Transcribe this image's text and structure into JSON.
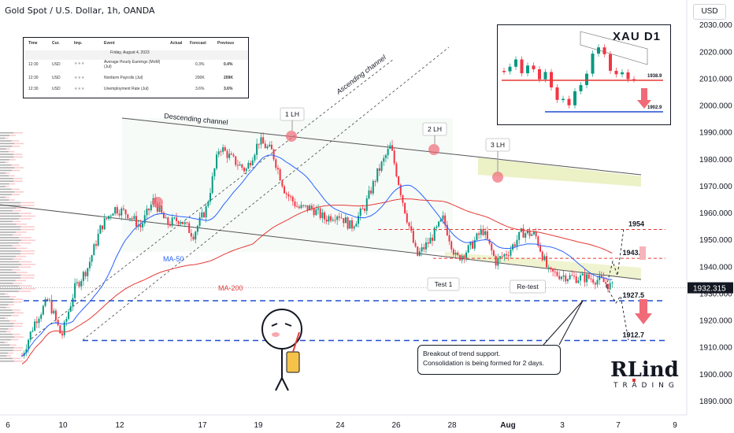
{
  "header": {
    "title": "Gold Spot / U.S. Dollar, 1h, OANDA",
    "currency_button": "USD"
  },
  "calendar": {
    "headers": [
      "Time",
      "Cur.",
      "Imp.",
      "Event",
      "Actual",
      "Forecast",
      "Previous"
    ],
    "date_row": "Friday, August 4, 2023",
    "rows": [
      {
        "time": "12:30",
        "cur": "USD",
        "imp": "★★★",
        "event": "Average Hourly Earnings (MoM) (Jul)",
        "actual": "",
        "forecast": "0.3%",
        "previous": "0.4%"
      },
      {
        "time": "12:30",
        "cur": "USD",
        "imp": "★★★",
        "event": "Nonfarm Payrolls (Jul)",
        "actual": "",
        "forecast": "200K",
        "previous": "209K"
      },
      {
        "time": "12:30",
        "cur": "USD",
        "imp": "★★★",
        "event": "Unemployment Rate (Jul)",
        "actual": "",
        "forecast": "3.6%",
        "previous": "3.6%"
      }
    ]
  },
  "inset": {
    "title": "XAU D1",
    "label_high": "1938.9",
    "label_low": "1902.9"
  },
  "callout": {
    "line1": "Breakout of trend support.",
    "line2": "Consolidation is being formed for 2 days."
  },
  "logo": {
    "mark": "RLinda",
    "sub": "TRADING"
  },
  "colors": {
    "candle_up": "#089981",
    "candle_down": "#f23645",
    "ma50": "#2962ff",
    "ma200": "#e53935",
    "channel": "#555555",
    "zone": "#dfe7a0",
    "level_red": "#e53935",
    "level_blue": "#1e4fcf"
  },
  "chart_data": {
    "type": "candlestick",
    "title": "Gold Spot / U.S. Dollar, 1h, OANDA",
    "ylim": [
      1885,
      2033
    ],
    "y_ticks": [
      1890,
      1900,
      1910,
      1920,
      1930,
      1940,
      1950,
      1960,
      1970,
      1980,
      1990,
      2000,
      2010,
      2020,
      2030
    ],
    "y_tick_labels": [
      "1890.000",
      "1900.000",
      "1910.000",
      "1920.000",
      "1930.000",
      "1940.000",
      "1950.000",
      "1960.000",
      "1970.000",
      "1980.000",
      "1990.000",
      "2000.000",
      "2010.000",
      "2020.000",
      "2030.000"
    ],
    "x_tick_labels": [
      "6",
      "10",
      "12",
      "17",
      "19",
      "24",
      "26",
      "28",
      "Aug",
      "3",
      "7",
      "9"
    ],
    "last_price": "1932.315",
    "levels": [
      {
        "value": 1954,
        "label": "1954",
        "style": "red-dashed"
      },
      {
        "value": 1943.3,
        "label": "1943.3",
        "style": "red-dashed"
      },
      {
        "value": 1927.5,
        "label": "1927.5",
        "style": "blue-dashed"
      },
      {
        "value": 1912.7,
        "label": "1912.7",
        "style": "blue-dashed"
      }
    ],
    "path_points": [
      1907,
      1920,
      1928,
      1914,
      1932,
      1940,
      1955,
      1962,
      1960,
      1955,
      1965,
      1956,
      1958,
      1952,
      1962,
      1985,
      1980,
      1976,
      1987,
      1983,
      1968,
      1962,
      1962,
      1958,
      1960,
      1955,
      1962,
      1975,
      1985,
      1963,
      1944,
      1950,
      1958,
      1943,
      1947,
      1954,
      1942,
      1946,
      1953,
      1952,
      1938,
      1937,
      1936,
      1936,
      1935,
      1932
    ],
    "annotations": [
      "1 LH",
      "2 LH",
      "3 LH",
      "Test 1",
      "Re-test",
      "Ascending channel",
      "Descending channel",
      "MA-50",
      "MA-200"
    ],
    "series": [
      {
        "name": "MA-50"
      },
      {
        "name": "MA-200"
      }
    ]
  }
}
